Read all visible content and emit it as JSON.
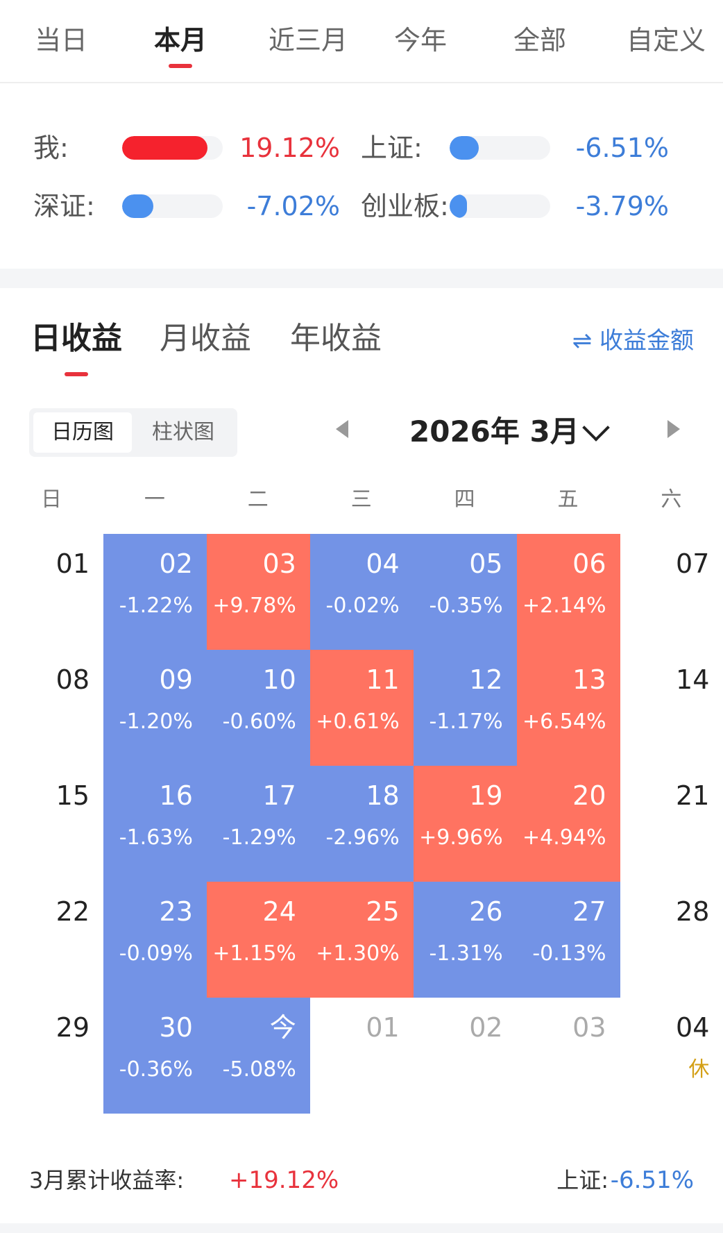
{
  "period_tabs": [
    "当日",
    "本月",
    "近三月",
    "今年",
    "全部",
    "自定义"
  ],
  "period_active": 1,
  "compare": {
    "me": {
      "label": "我:",
      "value": "19.12%",
      "fill": 0.85,
      "color": "#f5222d"
    },
    "sh": {
      "label": "上证:",
      "value": "-6.51%",
      "fill": 0.29,
      "color": "#4b91ef"
    },
    "sz": {
      "label": "深证:",
      "value": "-7.02%",
      "fill": 0.31,
      "color": "#4b91ef"
    },
    "cyb": {
      "label": "创业板:",
      "value": "-3.79%",
      "fill": 0.17,
      "color": "#4b91ef"
    }
  },
  "profit_tabs": [
    "日收益",
    "月收益",
    "年收益"
  ],
  "profit_active": 0,
  "amount_toggle": "⇌ 收益金额",
  "view_toggle": {
    "calendar": "日历图",
    "bar": "柱状图"
  },
  "month_title": "2026年 3月",
  "weekdays": [
    "日",
    "一",
    "二",
    "三",
    "四",
    "五",
    "六"
  ],
  "weeks": [
    [
      {
        "d": "01",
        "t": "plain"
      },
      {
        "d": "02",
        "p": "-1.22%",
        "t": "loss"
      },
      {
        "d": "03",
        "p": "+9.78%",
        "t": "gain"
      },
      {
        "d": "04",
        "p": "-0.02%",
        "t": "loss"
      },
      {
        "d": "05",
        "p": "-0.35%",
        "t": "loss"
      },
      {
        "d": "06",
        "p": "+2.14%",
        "t": "gain"
      },
      {
        "d": "07",
        "t": "plain"
      }
    ],
    [
      {
        "d": "08",
        "t": "plain"
      },
      {
        "d": "09",
        "p": "-1.20%",
        "t": "loss"
      },
      {
        "d": "10",
        "p": "-0.60%",
        "t": "loss"
      },
      {
        "d": "11",
        "p": "+0.61%",
        "t": "gain"
      },
      {
        "d": "12",
        "p": "-1.17%",
        "t": "loss"
      },
      {
        "d": "13",
        "p": "+6.54%",
        "t": "gain"
      },
      {
        "d": "14",
        "t": "plain"
      }
    ],
    [
      {
        "d": "15",
        "t": "plain"
      },
      {
        "d": "16",
        "p": "-1.63%",
        "t": "loss"
      },
      {
        "d": "17",
        "p": "-1.29%",
        "t": "loss"
      },
      {
        "d": "18",
        "p": "-2.96%",
        "t": "loss"
      },
      {
        "d": "19",
        "p": "+9.96%",
        "t": "gain"
      },
      {
        "d": "20",
        "p": "+4.94%",
        "t": "gain"
      },
      {
        "d": "21",
        "t": "plain"
      }
    ],
    [
      {
        "d": "22",
        "t": "plain"
      },
      {
        "d": "23",
        "p": "-0.09%",
        "t": "loss"
      },
      {
        "d": "24",
        "p": "+1.15%",
        "t": "gain"
      },
      {
        "d": "25",
        "p": "+1.30%",
        "t": "gain"
      },
      {
        "d": "26",
        "p": "-1.31%",
        "t": "loss"
      },
      {
        "d": "27",
        "p": "-0.13%",
        "t": "loss"
      },
      {
        "d": "28",
        "t": "plain"
      }
    ],
    [
      {
        "d": "29",
        "t": "plain"
      },
      {
        "d": "30",
        "p": "-0.36%",
        "t": "loss"
      },
      {
        "d": "今",
        "p": "-5.08%",
        "t": "loss"
      },
      {
        "d": "01",
        "t": "future"
      },
      {
        "d": "02",
        "t": "future"
      },
      {
        "d": "03",
        "t": "future"
      },
      {
        "d": "04",
        "t": "plain",
        "h": "休"
      }
    ]
  ],
  "footer": {
    "label": "3月累计收益率:",
    "value": "+19.12%",
    "index_label": "上证:",
    "index_value": "-6.51%"
  },
  "colors": {
    "gain": "#ff7361",
    "loss": "#7393e6",
    "accent_red": "#e8323c",
    "accent_blue": "#3d7dd8"
  }
}
